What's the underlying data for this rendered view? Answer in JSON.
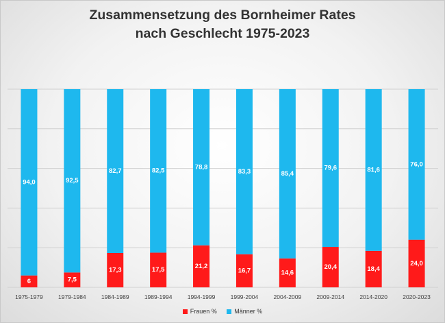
{
  "chart_data": {
    "type": "bar",
    "stacked": true,
    "title": [
      "Zusammensetzung des Bornheimer Rates",
      "nach Geschlecht 1975-2023"
    ],
    "categories": [
      "1975-1979",
      "1979-1984",
      "1984-1989",
      "1989-1994",
      "1994-1999",
      "1999-2004",
      "2004-2009",
      "2009-2014",
      "2014-2020",
      "2020-2023"
    ],
    "series": [
      {
        "name": "Frauen %",
        "color": "#ff1a1a",
        "values": [
          6,
          7.5,
          17.3,
          17.5,
          21.2,
          16.7,
          14.6,
          20.4,
          18.4,
          24.0
        ],
        "labels": [
          "6",
          "7,5",
          "17,3",
          "17,5",
          "21,2",
          "16,7",
          "14,6",
          "20,4",
          "18,4",
          "24,0"
        ]
      },
      {
        "name": "Männer %",
        "color": "#1eb8ee",
        "values": [
          94.0,
          92.5,
          82.7,
          82.5,
          78.8,
          83.3,
          85.4,
          79.6,
          81.6,
          76.0
        ],
        "labels": [
          "94,0",
          "92,5",
          "82,7",
          "82,5",
          "78,8",
          "83,3",
          "85,4",
          "79,6",
          "81,6",
          "76,0"
        ]
      }
    ],
    "ylim": [
      0,
      100
    ],
    "grid": true,
    "legend_position": "bottom"
  }
}
